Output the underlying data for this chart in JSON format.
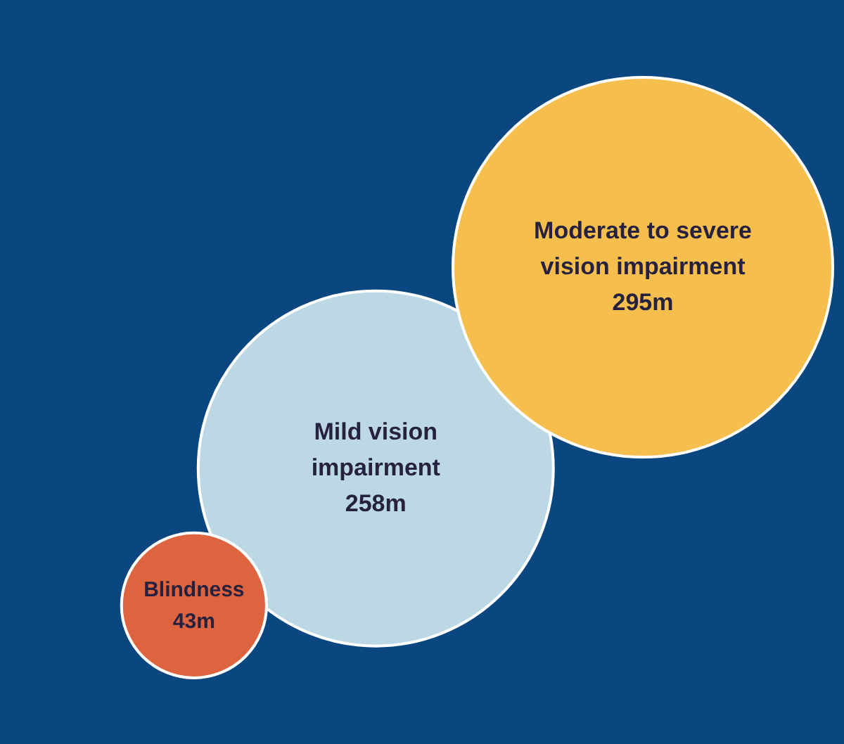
{
  "chart_data": {
    "type": "other",
    "categories": [
      "Blindness",
      "Mild vision impairment",
      "Moderate to severe vision impairment"
    ],
    "values": [
      43,
      258,
      295
    ],
    "value_labels": [
      "43m",
      "258m",
      "295m"
    ],
    "colors": [
      "#de6440",
      "#bcd8e4",
      "#f6be4c"
    ]
  }
}
